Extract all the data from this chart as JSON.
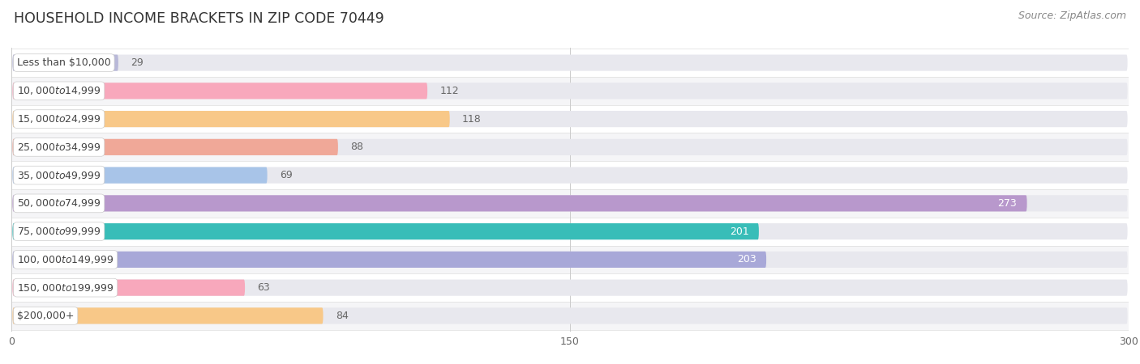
{
  "title": "HOUSEHOLD INCOME BRACKETS IN ZIP CODE 70449",
  "source": "Source: ZipAtlas.com",
  "categories": [
    "Less than $10,000",
    "$10,000 to $14,999",
    "$15,000 to $24,999",
    "$25,000 to $34,999",
    "$35,000 to $49,999",
    "$50,000 to $74,999",
    "$75,000 to $99,999",
    "$100,000 to $149,999",
    "$150,000 to $199,999",
    "$200,000+"
  ],
  "values": [
    29,
    112,
    118,
    88,
    69,
    273,
    201,
    203,
    63,
    84
  ],
  "bar_colors": [
    "#b8b8d8",
    "#f8a8bc",
    "#f8c888",
    "#f0a898",
    "#a8c4e8",
    "#b898cc",
    "#38bdb8",
    "#a8a8d8",
    "#f8a8bc",
    "#f8c888"
  ],
  "xlim": [
    0,
    300
  ],
  "xticks": [
    0,
    150,
    300
  ],
  "background_color": "#ffffff",
  "row_bg_color": "#f5f5f7",
  "bar_bg_color": "#e8e8ee",
  "label_color_dark": "#666666",
  "label_color_white": "#ffffff",
  "white_threshold": 160,
  "bar_height": 0.58,
  "title_fontsize": 12.5,
  "label_fontsize": 9,
  "value_fontsize": 9,
  "tick_fontsize": 9,
  "source_fontsize": 9
}
